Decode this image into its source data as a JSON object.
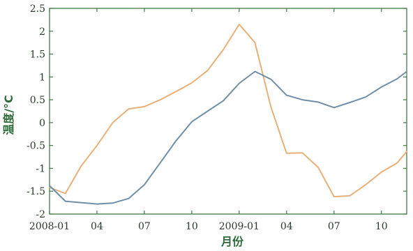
{
  "chart_data": {
    "type": "line",
    "title": "",
    "xlabel": "月份",
    "ylabel": "温度/°C",
    "ylim": [
      -2,
      2.5
    ],
    "yticks": [
      -2,
      -1.5,
      -1,
      -0.5,
      0,
      0.5,
      1,
      1.5,
      2,
      2.5
    ],
    "ytick_labels": [
      "-2",
      "-1.5",
      "-1",
      "-0.5",
      "0",
      "0.5",
      "1",
      "1.5",
      "2",
      "2.5"
    ],
    "xticks": [
      0,
      3,
      6,
      9,
      12,
      15,
      18,
      21
    ],
    "xtick_labels": [
      "2008-01",
      "04",
      "07",
      "10",
      "2009-01",
      "04",
      "07",
      "10"
    ],
    "xlim": [
      0,
      22.6
    ],
    "grid": false,
    "legend": "none",
    "colors": {
      "series_orange": "#e8b079",
      "series_blue": "#6f8fa8",
      "axis": "#3f7a45",
      "text": "#2a3a2a"
    },
    "series": [
      {
        "color": "#e8b079",
        "x": [
          0,
          1,
          2,
          3,
          4,
          5,
          6,
          7,
          8,
          9,
          10,
          11,
          12,
          13,
          14,
          15,
          16,
          17,
          18,
          19,
          20,
          21,
          22,
          22.6
        ],
        "values": [
          -1.42,
          -1.55,
          -0.95,
          -0.5,
          0.0,
          0.3,
          0.35,
          0.5,
          0.68,
          0.87,
          1.14,
          1.6,
          2.15,
          1.75,
          0.35,
          -0.67,
          -0.66,
          -0.98,
          -1.62,
          -1.6,
          -1.36,
          -1.08,
          -0.88,
          -0.63
        ]
      },
      {
        "color": "#6f8fa8",
        "x": [
          0,
          1,
          2,
          3,
          4,
          5,
          6,
          7,
          8,
          9,
          10,
          11,
          12,
          13,
          14,
          15,
          16,
          17,
          18,
          19,
          20,
          21,
          22,
          22.6
        ],
        "values": [
          -1.38,
          -1.72,
          -1.75,
          -1.78,
          -1.76,
          -1.66,
          -1.36,
          -0.88,
          -0.4,
          0.02,
          0.25,
          0.48,
          0.86,
          1.12,
          0.95,
          0.6,
          0.5,
          0.45,
          0.33,
          0.44,
          0.56,
          0.78,
          0.96,
          1.12
        ]
      }
    ]
  }
}
